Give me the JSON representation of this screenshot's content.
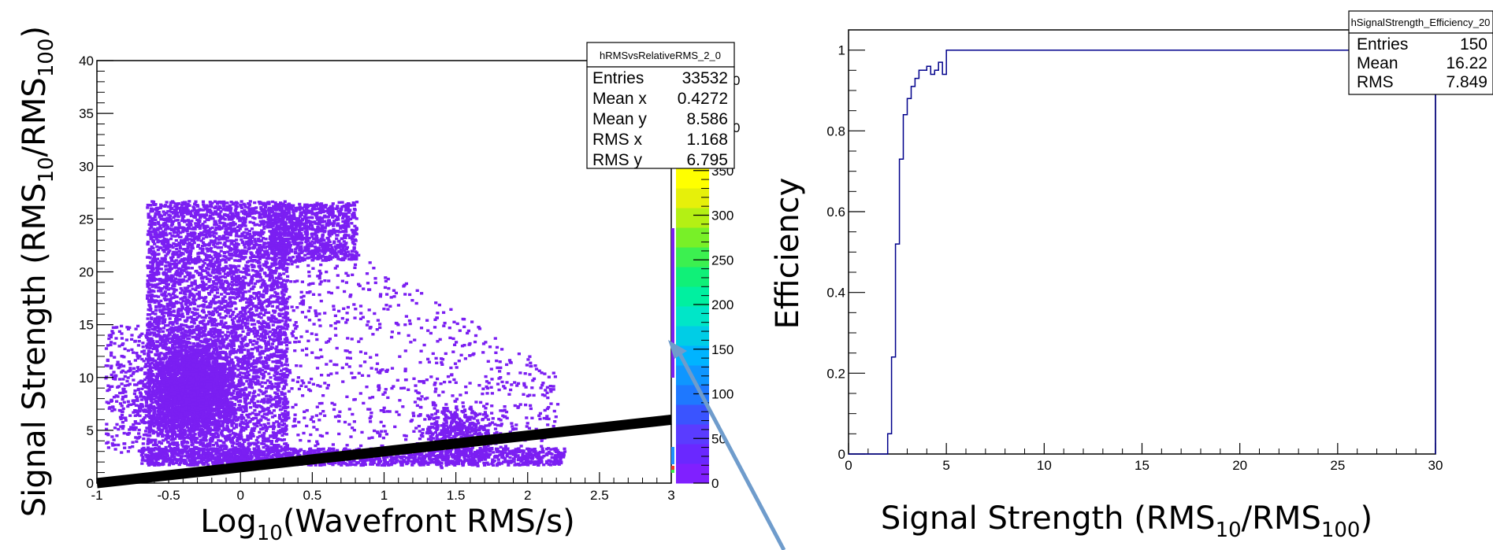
{
  "chart_data": [
    {
      "type": "heatmap",
      "title": "",
      "xlabel": {
        "base": "Log",
        "sub": "10",
        "rest": "(Wavefront RMS/s)"
      },
      "ylabel": {
        "pre": "Signal Strength (RMS",
        "sub1": "10",
        "mid": "/RMS",
        "sub2": "100",
        "post": ")"
      },
      "xlim": [
        -1,
        3
      ],
      "ylim": [
        0,
        40
      ],
      "xticks": [
        "-1",
        "-0.5",
        "0",
        "0.5",
        "1",
        "1.5",
        "2",
        "2.5",
        "3"
      ],
      "yticks": [
        "0",
        "5",
        "10",
        "15",
        "20",
        "25",
        "30",
        "35",
        "40"
      ],
      "colorbar": {
        "ticks": [
          "0",
          "50",
          "100",
          "150",
          "200",
          "250",
          "300",
          "350"
        ],
        "hidden_ticks": [
          "0",
          "0"
        ]
      },
      "stats": {
        "title": "hRMSvsRelativeRMS_2_0",
        "rows": [
          {
            "label": "Entries",
            "value": "33532"
          },
          {
            "label": "Mean x",
            "value": "0.4272"
          },
          {
            "label": "Mean y",
            "value": "8.586"
          },
          {
            "label": "RMS x",
            "value": "1.168"
          },
          {
            "label": "RMS y",
            "value": "6.795"
          }
        ]
      },
      "cut_line": {
        "x": [
          -1,
          3
        ],
        "y": [
          0,
          6
        ]
      },
      "colors": {
        "points": "#7b1ff2",
        "cut": "#000000",
        "arrow": "#6f9ccc"
      }
    },
    {
      "type": "line",
      "title": "",
      "xlabel": {
        "pre": "Signal Strength (RMS",
        "sub1": "10",
        "mid": "/RMS",
        "sub2": "100",
        "post": ")"
      },
      "ylabel": "Efficiency",
      "xlim": [
        0,
        30
      ],
      "ylim": [
        0,
        1.05
      ],
      "xticks": [
        "0",
        "5",
        "10",
        "15",
        "20",
        "25",
        "30"
      ],
      "yticks": [
        "0",
        "0.2",
        "0.4",
        "0.6",
        "0.8",
        "1"
      ],
      "stats": {
        "title": "hSignalStrength_Efficiency_20",
        "rows": [
          {
            "label": "Entries",
            "value": "150"
          },
          {
            "label": "Mean",
            "value": "16.22"
          },
          {
            "label": "RMS",
            "value": "7.849"
          }
        ]
      },
      "series": [
        {
          "x": [
            0,
            2,
            2.2,
            2.4,
            2.6,
            2.8,
            3.0,
            3.2,
            3.4,
            3.6,
            3.8,
            4.0,
            4.2,
            4.4,
            4.6,
            4.8,
            5.0,
            29.8,
            30.0
          ],
          "values": [
            0,
            0.05,
            0.24,
            0.52,
            0.73,
            0.84,
            0.88,
            0.91,
            0.93,
            0.95,
            0.95,
            0.96,
            0.94,
            0.95,
            0.97,
            0.94,
            1.0,
            1.0,
            0
          ],
          "color": "#00008b"
        }
      ]
    }
  ]
}
